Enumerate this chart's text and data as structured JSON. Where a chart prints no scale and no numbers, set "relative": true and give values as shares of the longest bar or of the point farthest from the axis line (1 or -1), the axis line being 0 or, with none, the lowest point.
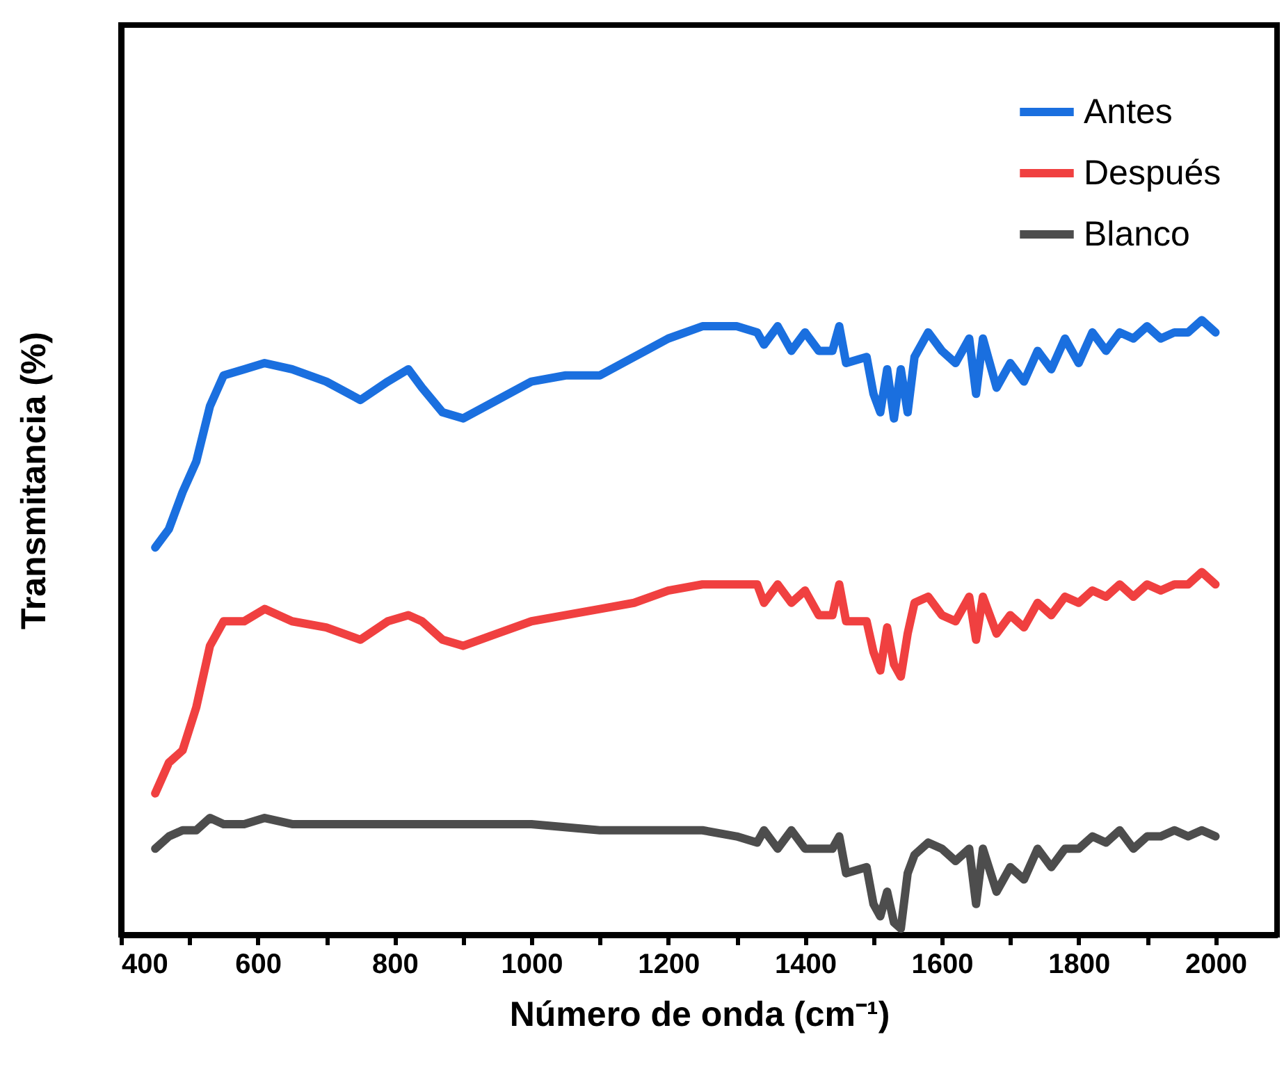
{
  "chart_data": {
    "type": "line",
    "relative": true,
    "xlabel": "Número de onda (cm⁻¹)",
    "ylabel": "Transmitancia (%)",
    "xlim": [
      400,
      2090
    ],
    "xticks": [
      400,
      {
        "value": 500,
        "label": null
      },
      600,
      {
        "value": 700,
        "label": null
      },
      800,
      {
        "value": 900,
        "label": null
      },
      1000,
      {
        "value": 1100,
        "label": null
      },
      1200,
      {
        "value": 1300,
        "label": null
      },
      1400,
      {
        "value": 1500,
        "label": null
      },
      1600,
      {
        "value": 1700,
        "label": null
      },
      1800,
      {
        "value": 1900,
        "label": null
      },
      2000
    ],
    "grid": false,
    "legend": "top right",
    "x": [
      450,
      470,
      490,
      510,
      530,
      550,
      580,
      610,
      650,
      700,
      750,
      790,
      820,
      840,
      870,
      900,
      950,
      1000,
      1050,
      1100,
      1150,
      1200,
      1250,
      1300,
      1330,
      1340,
      1360,
      1380,
      1400,
      1420,
      1440,
      1450,
      1460,
      1490,
      1500,
      1510,
      1520,
      1530,
      1540,
      1550,
      1560,
      1580,
      1600,
      1620,
      1640,
      1650,
      1660,
      1680,
      1700,
      1720,
      1740,
      1760,
      1780,
      1800,
      1820,
      1840,
      1860,
      1880,
      1900,
      1920,
      1940,
      1960,
      1980,
      2000
    ],
    "series": [
      {
        "name": "Antes",
        "color": "#1a6fdf",
        "values": [
          0.63,
          0.66,
          0.72,
          0.77,
          0.86,
          0.91,
          0.92,
          0.93,
          0.92,
          0.9,
          0.87,
          0.9,
          0.92,
          0.89,
          0.85,
          0.84,
          0.87,
          0.9,
          0.91,
          0.91,
          0.94,
          0.97,
          0.99,
          0.99,
          0.98,
          0.96,
          0.99,
          0.95,
          0.98,
          0.95,
          0.95,
          0.99,
          0.93,
          0.94,
          0.88,
          0.85,
          0.92,
          0.84,
          0.92,
          0.85,
          0.94,
          0.98,
          0.95,
          0.93,
          0.97,
          0.88,
          0.97,
          0.89,
          0.93,
          0.9,
          0.95,
          0.92,
          0.97,
          0.93,
          0.98,
          0.95,
          0.98,
          0.97,
          0.99,
          0.97,
          0.98,
          0.98,
          1.0,
          0.98
        ]
      },
      {
        "name": "Después",
        "color": "#f04040",
        "values": [
          0.23,
          0.28,
          0.3,
          0.37,
          0.47,
          0.51,
          0.51,
          0.53,
          0.51,
          0.5,
          0.48,
          0.51,
          0.52,
          0.51,
          0.48,
          0.47,
          0.49,
          0.51,
          0.52,
          0.53,
          0.54,
          0.56,
          0.57,
          0.57,
          0.57,
          0.54,
          0.57,
          0.54,
          0.56,
          0.52,
          0.52,
          0.57,
          0.51,
          0.51,
          0.46,
          0.43,
          0.5,
          0.44,
          0.42,
          0.49,
          0.54,
          0.55,
          0.52,
          0.51,
          0.55,
          0.48,
          0.55,
          0.49,
          0.52,
          0.5,
          0.54,
          0.52,
          0.55,
          0.54,
          0.56,
          0.55,
          0.57,
          0.55,
          0.57,
          0.56,
          0.57,
          0.57,
          0.59,
          0.57
        ]
      },
      {
        "name": "Blanco",
        "color": "#4d4d4d",
        "x": [
          450,
          470,
          490,
          510,
          530,
          550,
          580,
          610,
          650,
          700,
          750,
          800,
          900,
          1000,
          1100,
          1150,
          1200,
          1250,
          1300,
          1330,
          1340,
          1360,
          1380,
          1400,
          1420,
          1440,
          1450,
          1460,
          1490,
          1500,
          1510,
          1520,
          1530,
          1540,
          1550,
          1560,
          1580,
          1600,
          1620,
          1640,
          1650,
          1660,
          1680,
          1700,
          1720,
          1740,
          1760,
          1780,
          1800,
          1820,
          1840,
          1860,
          1880,
          1900,
          1920,
          1940,
          1960,
          1980,
          2000
        ],
        "values": [
          0.14,
          0.16,
          0.17,
          0.17,
          0.19,
          0.18,
          0.18,
          0.19,
          0.18,
          0.18,
          0.18,
          0.18,
          0.18,
          0.18,
          0.17,
          0.17,
          0.17,
          0.17,
          0.16,
          0.15,
          0.17,
          0.14,
          0.17,
          0.14,
          0.14,
          0.14,
          0.16,
          0.1,
          0.11,
          0.05,
          0.03,
          0.07,
          0.02,
          0.01,
          0.1,
          0.13,
          0.15,
          0.14,
          0.12,
          0.14,
          0.05,
          0.14,
          0.07,
          0.11,
          0.09,
          0.14,
          0.11,
          0.14,
          0.14,
          0.16,
          0.15,
          0.17,
          0.14,
          0.16,
          0.16,
          0.17,
          0.16,
          0.17,
          0.16
        ]
      }
    ]
  }
}
